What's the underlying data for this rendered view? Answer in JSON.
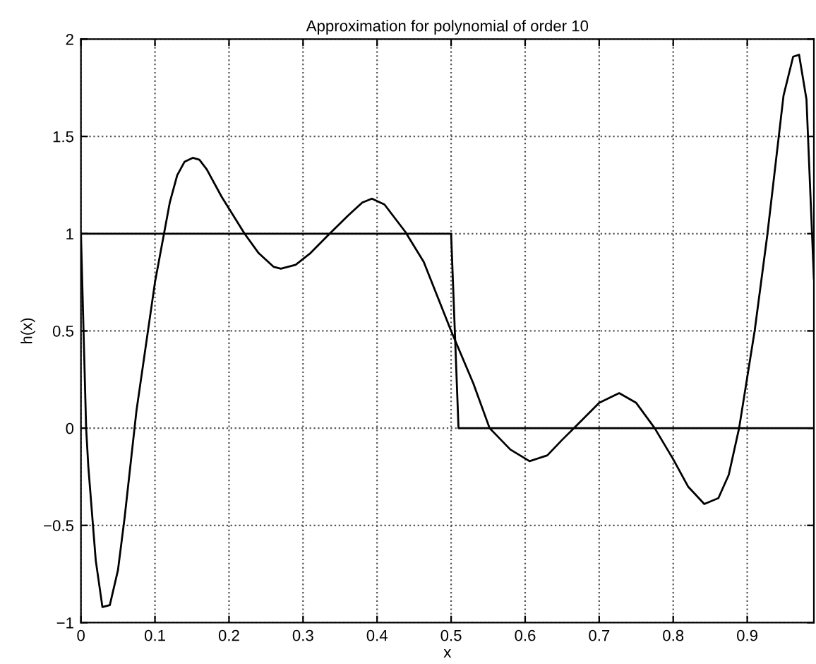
{
  "chart_data": {
    "type": "line",
    "title": "Approximation for polynomial of order 10",
    "xlabel": "x",
    "ylabel": "h(x)",
    "series": [
      {
        "color": "#000000",
        "x": [
          0,
          0.5,
          0.51,
          0.99
        ],
        "values": [
          1,
          1,
          0,
          0
        ]
      },
      {
        "color": "#000000",
        "x": [
          0,
          0.007,
          0.01,
          0.02,
          0.029,
          0.039,
          0.05,
          0.059,
          0.075,
          0.1,
          0.12,
          0.13,
          0.14,
          0.151,
          0.16,
          0.17,
          0.19,
          0.221,
          0.24,
          0.26,
          0.27,
          0.29,
          0.31,
          0.336,
          0.36,
          0.38,
          0.393,
          0.41,
          0.42,
          0.438,
          0.463,
          0.5,
          0.53,
          0.552,
          0.58,
          0.606,
          0.63,
          0.65,
          0.666,
          0.7,
          0.727,
          0.75,
          0.775,
          0.8,
          0.82,
          0.842,
          0.861,
          0.875,
          0.889,
          0.91,
          0.927,
          0.949,
          0.962,
          0.97,
          0.98,
          0.99
        ],
        "values": [
          1,
          0,
          -0.2,
          -0.68,
          -0.92,
          -0.91,
          -0.73,
          -0.46,
          0.09,
          0.75,
          1.16,
          1.3,
          1.37,
          1.39,
          1.38,
          1.33,
          1.19,
          1,
          0.9,
          0.83,
          0.82,
          0.84,
          0.9,
          1,
          1.09,
          1.16,
          1.18,
          1.15,
          1.1,
          1.01,
          0.855,
          0.5,
          0.23,
          0,
          -0.11,
          -0.17,
          -0.14,
          -0.06,
          0,
          0.13,
          0.18,
          0.13,
          0,
          -0.16,
          -0.3,
          -0.39,
          -0.36,
          -0.24,
          0,
          0.5,
          0.99,
          1.71,
          1.91,
          1.92,
          1.69,
          0.77
        ]
      }
    ],
    "xlim": [
      0,
      0.99
    ],
    "ylim": [
      -1,
      2
    ],
    "xticks": [
      0,
      0.1,
      0.2,
      0.3,
      0.4,
      0.5,
      0.6,
      0.7,
      0.8,
      0.9
    ],
    "yticks": [
      {
        "value": -1,
        "label": "−1"
      },
      {
        "value": -0.5,
        "label": "−0.5"
      },
      0,
      0.5,
      1,
      1.5,
      2
    ],
    "grid": true,
    "line_style": "solid",
    "marker": "none",
    "legend": false
  }
}
